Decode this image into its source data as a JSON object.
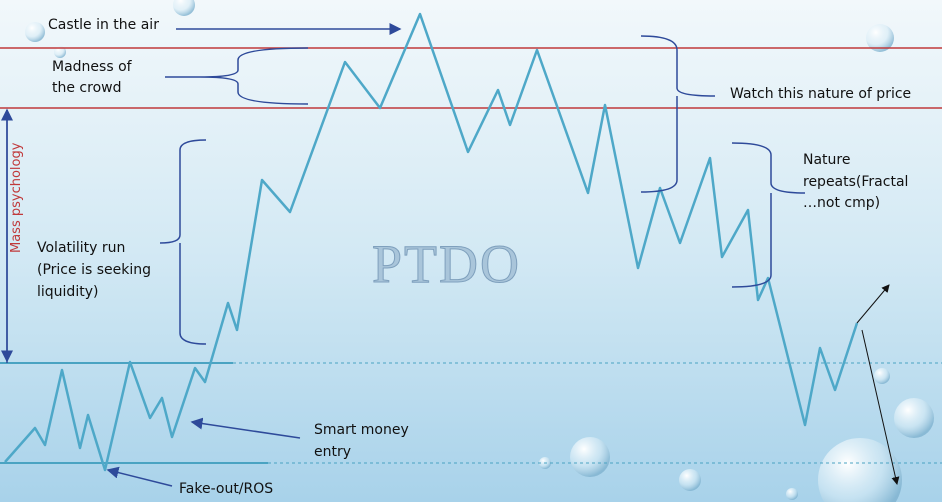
{
  "labels": {
    "castle": "Castle in the air",
    "madness": [
      "Madness of",
      "the crowd"
    ],
    "watch": "Watch this nature of price",
    "mass": "Mass psychology",
    "volatility": [
      "Volatility run",
      "(Price is seeking",
      "liquidity)"
    ],
    "watermark": "PTDO",
    "nature": [
      "Nature",
      "repeats(Fractal",
      "…not cmp)"
    ],
    "smart": [
      "Smart money",
      "entry"
    ],
    "fakeout": "Fake-out/ROS"
  }
}
